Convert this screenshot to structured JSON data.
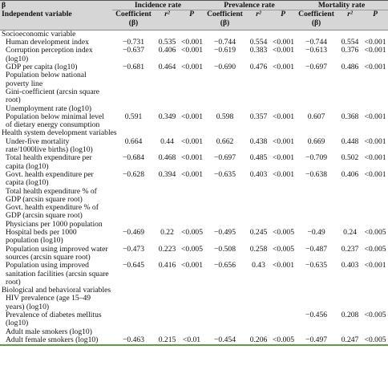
{
  "header": {
    "corner": "β",
    "first_col": "Independent variable",
    "groups": [
      "Incidence rate",
      "Prevalence rate",
      "Mortality rate"
    ],
    "subheads": [
      "Coefficient (β)",
      "r²",
      "P",
      "Coefficient (β)",
      "r²",
      "P",
      "Coefficient (β)",
      "r²",
      "P"
    ]
  },
  "table": {
    "rows": [
      {
        "section": "Socioeconomic variable"
      },
      {
        "label": "Human development index",
        "cells": [
          "−0.731",
          "0.535",
          "<0.001",
          "−0.744",
          "0.554",
          "<0.001",
          "−0.744",
          "0.554",
          "<0.001"
        ]
      },
      {
        "label": "Corruption perception index (log10)",
        "cells": [
          "−0.637",
          "0.406",
          "<0.001",
          "−0.619",
          "0.383",
          "<0.001",
          "−0.613",
          "0.376",
          "<0.001"
        ]
      },
      {
        "label": "GDP per capita (log10)",
        "cells": [
          "−0.681",
          "0.464",
          "<0.001",
          "−0.690",
          "0.476",
          "<0.001",
          "−0.697",
          "0.486",
          "<0.001"
        ]
      },
      {
        "label": "Population below national poverty line"
      },
      {
        "label": "Gini-coefficient (arcsin square root)"
      },
      {
        "label": "Unemployment rate (log10)"
      },
      {
        "label": "Population below minimal level of dietary energy consumption",
        "cells": [
          "0.591",
          "0.349",
          "<0.001",
          "0.598",
          "0.357",
          "<0.001",
          "0.607",
          "0.368",
          "<0.001"
        ]
      },
      {
        "section": "Health system development variables"
      },
      {
        "label": "Under-five mortality rate/1000live births) (log10)",
        "cells": [
          "0.664",
          "0.44",
          "<0.001",
          "0.662",
          "0.438",
          "<0.001",
          "0.669",
          "0.448",
          "<0.001"
        ]
      },
      {
        "label": "Total health expenditure per capita (log10)",
        "cells": [
          "−0.684",
          "0.468",
          "<0.001",
          "−0.697",
          "0.485",
          "<0.001",
          "−0.709",
          "0.502",
          "<0.001"
        ]
      },
      {
        "label": "Govt. health expenditure per capita (log10)",
        "cells": [
          "−0.628",
          "0.394",
          "<0.001",
          "−0.635",
          "0.403",
          "<0.001",
          "−0.638",
          "0.406",
          "<0.001"
        ]
      },
      {
        "label": "Total health expenditure % of GDP (arcsin square root)"
      },
      {
        "label": "Govt. health expenditure % of GDP (arcsin square root)"
      },
      {
        "label": "Physicians per 1000 population"
      },
      {
        "label": "Hospital beds per 1000 population (log10)",
        "cells": [
          "−0.469",
          "0.22",
          "<0.005",
          "−0.495",
          "0.245",
          "<0.005",
          "−0.49",
          "0.24",
          "<0.005"
        ]
      },
      {
        "label": "Population using improved water sources (arcsin square root)",
        "cells": [
          "−0.473",
          "0.223",
          "<0.005",
          "−0.508",
          "0.258",
          "<0.005",
          "−0.487",
          "0.237",
          "<0.005"
        ]
      },
      {
        "label": "Population using improved sanitation facilities (arcsin square root)",
        "cells": [
          "−0.645",
          "0.416",
          "<0.001",
          "−0.656",
          "0.43",
          "<0.001",
          "−0.635",
          "0.403",
          "<0.001"
        ]
      },
      {
        "section": "Biological and behavioral variables"
      },
      {
        "label": "HIV prevalence (age 15–49 years) (log10)"
      },
      {
        "label": "Prevalence of diabetes mellitus (log10)",
        "cells": [
          null,
          null,
          null,
          null,
          null,
          null,
          "−0.456",
          "0.208",
          "<0.005"
        ]
      },
      {
        "label": "Adult male smokers (log10)"
      },
      {
        "label": "Adult female smokers (log10)",
        "cells": [
          "−0.463",
          "0.215",
          "<0.01",
          "−0.454",
          "0.206",
          "<0.005",
          "−0.497",
          "0.247",
          "<0.005"
        ]
      }
    ]
  }
}
